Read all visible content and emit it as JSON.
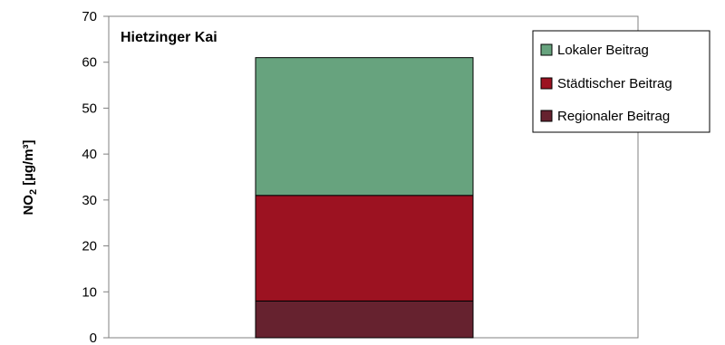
{
  "chart_data": {
    "type": "bar",
    "stacked": true,
    "title": "Hietzinger Kai",
    "ylabel_main": "NO",
    "ylabel_sub": "2",
    "ylabel_unit": " [µg/m³]",
    "ylim": [
      0,
      70
    ],
    "yticks": [
      0,
      10,
      20,
      30,
      40,
      50,
      60,
      70
    ],
    "grid": false,
    "legend_position": "top-right",
    "categories": [
      ""
    ],
    "series": [
      {
        "name": "Regionaler Beitrag",
        "values": [
          8
        ],
        "color": "#66222f"
      },
      {
        "name": "Städtischer Beitrag",
        "values": [
          23
        ],
        "color": "#9c1221"
      },
      {
        "name": "Lokaler Beitrag",
        "values": [
          30
        ],
        "color": "#67a37e"
      }
    ],
    "legend_order": [
      "Lokaler Beitrag",
      "Städtischer Beitrag",
      "Regionaler Beitrag"
    ]
  }
}
